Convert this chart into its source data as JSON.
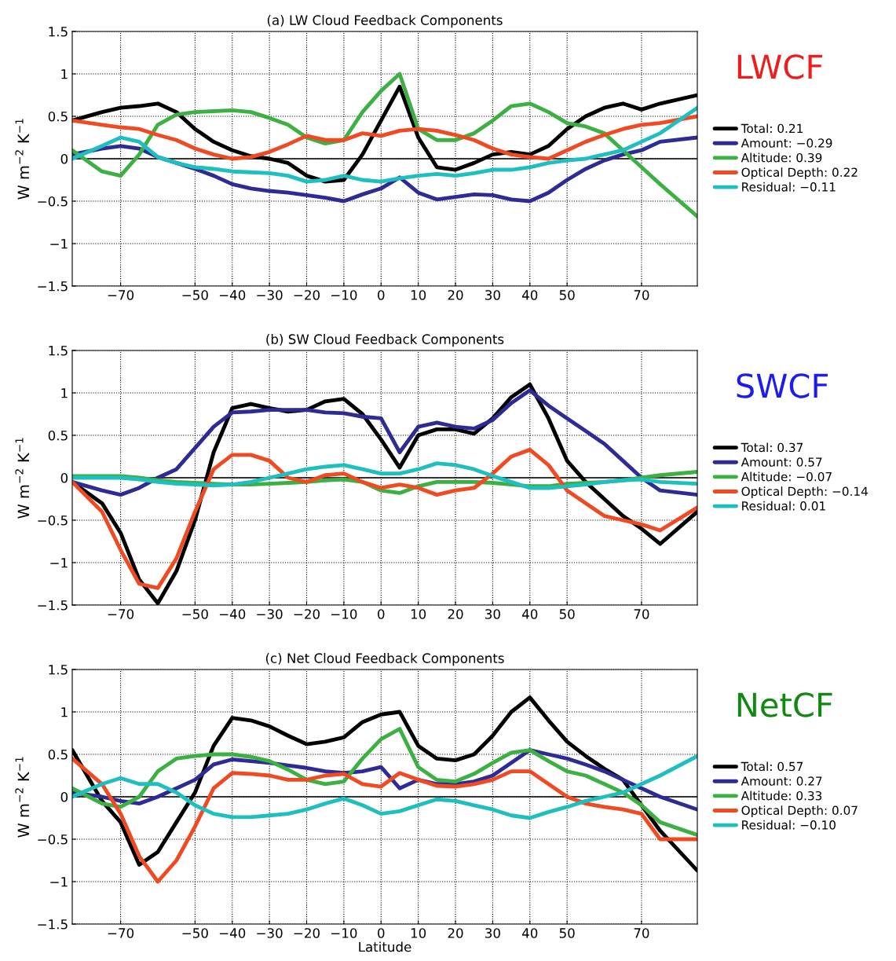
{
  "chart_data": [
    {
      "type": "line",
      "title": "(a) LW Cloud Feedback Components",
      "ylabel": "W m$^{−2}$ K$^{−1}$",
      "annotations": [
        "LWCF"
      ],
      "legend": "right",
      "grid": true,
      "line_style": "solid",
      "xlim": [
        -83,
        85
      ],
      "xticks": [
        {
          "value": -70,
          "label": "−70"
        },
        {
          "value": -50,
          "label": "−50"
        },
        {
          "value": -40,
          "label": "−40"
        },
        {
          "value": -30,
          "label": "−30"
        },
        {
          "value": -20,
          "label": "−20"
        },
        {
          "value": -10,
          "label": "−10"
        },
        0,
        10,
        20,
        30,
        40,
        50,
        70
      ],
      "ylim": [
        -1.5,
        1.5
      ],
      "yticks": [
        {
          "value": -1.5,
          "label": "−1.5"
        },
        {
          "value": -1,
          "label": "−1"
        },
        {
          "value": -0.5,
          "label": "−0.5"
        },
        0,
        0.5,
        1,
        1.5
      ],
      "ref_lines": [
        {
          "axis": "y",
          "value": 0,
          "color": "#000000",
          "line_style": "solid"
        }
      ],
      "x": [
        -83,
        -75,
        -70,
        -65,
        -60,
        -55,
        -50,
        -45,
        -40,
        -35,
        -30,
        -25,
        -20,
        -15,
        -10,
        -5,
        0,
        5,
        10,
        15,
        20,
        25,
        30,
        35,
        40,
        45,
        50,
        55,
        60,
        65,
        70,
        75,
        85
      ],
      "series": [
        {
          "name": "Total: 0.21",
          "color": "#000000",
          "values": [
            0.45,
            0.55,
            0.6,
            0.62,
            0.65,
            0.55,
            0.35,
            0.2,
            0.1,
            0.03,
            0.0,
            -0.05,
            -0.2,
            -0.27,
            -0.25,
            0.05,
            0.45,
            0.85,
            0.25,
            -0.1,
            -0.13,
            -0.05,
            0.05,
            0.08,
            0.05,
            0.15,
            0.35,
            0.5,
            0.6,
            0.65,
            0.58,
            0.65,
            0.75
          ]
        },
        {
          "name": "Amount: −0.29",
          "color": "#2e2a96",
          "values": [
            0.05,
            0.12,
            0.15,
            0.12,
            0.02,
            -0.05,
            -0.12,
            -0.2,
            -0.3,
            -0.35,
            -0.38,
            -0.4,
            -0.43,
            -0.46,
            -0.5,
            -0.42,
            -0.35,
            -0.22,
            -0.4,
            -0.48,
            -0.45,
            -0.42,
            -0.43,
            -0.48,
            -0.5,
            -0.4,
            -0.25,
            -0.12,
            -0.02,
            0.05,
            0.1,
            0.2,
            0.25
          ]
        },
        {
          "name": "Altitude: 0.39",
          "color": "#3cb043",
          "values": [
            0.1,
            -0.15,
            -0.2,
            0.05,
            0.4,
            0.52,
            0.55,
            0.56,
            0.57,
            0.55,
            0.48,
            0.4,
            0.25,
            0.18,
            0.22,
            0.55,
            0.8,
            1.0,
            0.35,
            0.22,
            0.22,
            0.3,
            0.45,
            0.62,
            0.65,
            0.55,
            0.42,
            0.38,
            0.3,
            0.1,
            -0.1,
            -0.3,
            -0.68
          ]
        },
        {
          "name": "Optical Depth: 0.22",
          "color": "#f04a23",
          "values": [
            0.45,
            0.4,
            0.37,
            0.35,
            0.28,
            0.22,
            0.12,
            0.05,
            0.0,
            0.02,
            0.08,
            0.17,
            0.27,
            0.22,
            0.22,
            0.3,
            0.27,
            0.33,
            0.35,
            0.33,
            0.28,
            0.22,
            0.12,
            0.05,
            0.02,
            0.0,
            0.1,
            0.2,
            0.28,
            0.35,
            0.4,
            0.42,
            0.5
          ]
        },
        {
          "name": "Residual: −0.11",
          "color": "#1fbfbf",
          "values": [
            0.0,
            0.15,
            0.25,
            0.2,
            0.02,
            -0.05,
            -0.1,
            -0.12,
            -0.15,
            -0.16,
            -0.17,
            -0.2,
            -0.27,
            -0.25,
            -0.2,
            -0.25,
            -0.27,
            -0.23,
            -0.2,
            -0.18,
            -0.2,
            -0.17,
            -0.13,
            -0.13,
            -0.1,
            -0.05,
            -0.02,
            0.0,
            0.05,
            0.1,
            0.2,
            0.3,
            0.6
          ]
        }
      ]
    },
    {
      "type": "line",
      "title": "(b) SW Cloud Feedback Components",
      "ylabel": "W m$^{−2}$ K$^{−1}$",
      "annotations": [
        "SWCF"
      ],
      "legend": "right",
      "grid": true,
      "line_style": "solid",
      "xlim": [
        -83,
        85
      ],
      "xticks": [
        {
          "value": -70,
          "label": "−70"
        },
        {
          "value": -50,
          "label": "−50"
        },
        {
          "value": -40,
          "label": "−40"
        },
        {
          "value": -30,
          "label": "−30"
        },
        {
          "value": -20,
          "label": "−20"
        },
        {
          "value": -10,
          "label": "−10"
        },
        0,
        10,
        20,
        30,
        40,
        50,
        70
      ],
      "ylim": [
        -1.5,
        1.5
      ],
      "yticks": [
        {
          "value": -1.5,
          "label": "−1.5"
        },
        {
          "value": -1,
          "label": "−1"
        },
        {
          "value": -0.5,
          "label": "−0.5"
        },
        0,
        0.5,
        1,
        1.5
      ],
      "ref_lines": [
        {
          "axis": "y",
          "value": 0,
          "color": "#000000",
          "line_style": "solid"
        }
      ],
      "x": [
        -83,
        -75,
        -70,
        -65,
        -60,
        -55,
        -50,
        -45,
        -40,
        -35,
        -30,
        -25,
        -20,
        -15,
        -10,
        -5,
        0,
        5,
        10,
        15,
        20,
        25,
        30,
        35,
        40,
        45,
        50,
        55,
        60,
        65,
        70,
        75,
        85
      ],
      "series": [
        {
          "name": "Total: 0.37",
          "color": "#000000",
          "values": [
            -0.05,
            -0.3,
            -0.65,
            -1.2,
            -1.48,
            -1.1,
            -0.5,
            0.3,
            0.82,
            0.87,
            0.82,
            0.78,
            0.8,
            0.9,
            0.93,
            0.75,
            0.45,
            0.12,
            0.5,
            0.57,
            0.57,
            0.52,
            0.7,
            0.95,
            1.1,
            0.7,
            0.2,
            -0.05,
            -0.25,
            -0.45,
            -0.6,
            -0.78,
            -0.4
          ]
        },
        {
          "name": "Amount: 0.57",
          "color": "#2e2a96",
          "values": [
            -0.05,
            -0.15,
            -0.2,
            -0.12,
            0.0,
            0.1,
            0.35,
            0.6,
            0.77,
            0.78,
            0.8,
            0.8,
            0.8,
            0.77,
            0.76,
            0.72,
            0.7,
            0.3,
            0.6,
            0.65,
            0.6,
            0.58,
            0.68,
            0.88,
            1.03,
            0.85,
            0.7,
            0.55,
            0.4,
            0.2,
            0.0,
            -0.15,
            -0.2
          ]
        },
        {
          "name": "Altitude: −0.07",
          "color": "#3cb043",
          "values": [
            0.02,
            0.02,
            0.02,
            0.0,
            -0.03,
            -0.05,
            -0.06,
            -0.07,
            -0.08,
            -0.08,
            -0.07,
            -0.06,
            -0.05,
            -0.03,
            -0.02,
            -0.05,
            -0.15,
            -0.18,
            -0.1,
            -0.05,
            -0.05,
            -0.05,
            -0.06,
            -0.08,
            -0.1,
            -0.1,
            -0.07,
            -0.06,
            -0.05,
            -0.03,
            0.0,
            0.03,
            0.07
          ]
        },
        {
          "name": "Optical Depth: −0.14",
          "color": "#f04a23",
          "values": [
            -0.05,
            -0.4,
            -0.85,
            -1.25,
            -1.3,
            -0.95,
            -0.4,
            0.1,
            0.27,
            0.27,
            0.2,
            0.0,
            -0.05,
            0.03,
            0.05,
            -0.05,
            -0.12,
            -0.08,
            -0.12,
            -0.2,
            -0.15,
            -0.12,
            0.05,
            0.25,
            0.33,
            0.15,
            -0.15,
            -0.3,
            -0.45,
            -0.5,
            -0.55,
            -0.62,
            -0.35
          ]
        },
        {
          "name": "Residual: 0.01",
          "color": "#1fbfbf",
          "values": [
            0.0,
            0.0,
            0.0,
            -0.02,
            -0.05,
            -0.07,
            -0.08,
            -0.09,
            -0.08,
            -0.05,
            0.0,
            0.05,
            0.1,
            0.13,
            0.15,
            0.1,
            0.05,
            0.05,
            0.1,
            0.17,
            0.15,
            0.1,
            0.02,
            -0.05,
            -0.12,
            -0.12,
            -0.1,
            -0.08,
            -0.05,
            -0.03,
            -0.02,
            -0.05,
            -0.07
          ]
        }
      ]
    },
    {
      "type": "line",
      "title": "(c) Net Cloud Feedback Components",
      "xlabel": "Latitude",
      "ylabel": "W m$^{−2}$ K$^{−1}$",
      "annotations": [
        "NetCF"
      ],
      "legend": "right",
      "grid": true,
      "line_style": "solid",
      "xlim": [
        -83,
        85
      ],
      "xticks": [
        {
          "value": -70,
          "label": "−70"
        },
        {
          "value": -50,
          "label": "−50"
        },
        {
          "value": -40,
          "label": "−40"
        },
        {
          "value": -30,
          "label": "−30"
        },
        {
          "value": -20,
          "label": "−20"
        },
        {
          "value": -10,
          "label": "−10"
        },
        0,
        10,
        20,
        30,
        40,
        50,
        70
      ],
      "ylim": [
        -1.5,
        1.5
      ],
      "yticks": [
        {
          "value": -1.5,
          "label": "−1.5"
        },
        {
          "value": -1,
          "label": "−1"
        },
        {
          "value": -0.5,
          "label": "−0.5"
        },
        0,
        0.5,
        1,
        1.5
      ],
      "ref_lines": [
        {
          "axis": "y",
          "value": 0,
          "color": "#000000",
          "line_style": "solid"
        }
      ],
      "x": [
        -83,
        -75,
        -70,
        -65,
        -60,
        -55,
        -50,
        -45,
        -40,
        -35,
        -30,
        -25,
        -20,
        -15,
        -10,
        -5,
        0,
        5,
        10,
        15,
        20,
        25,
        30,
        35,
        40,
        45,
        50,
        55,
        60,
        65,
        70,
        75,
        85
      ],
      "series": [
        {
          "name": "Total: 0.57",
          "color": "#000000",
          "values": [
            0.55,
            -0.05,
            -0.3,
            -0.8,
            -0.65,
            -0.3,
            0.05,
            0.6,
            0.93,
            0.9,
            0.83,
            0.72,
            0.62,
            0.65,
            0.7,
            0.88,
            0.97,
            1.0,
            0.6,
            0.45,
            0.43,
            0.5,
            0.72,
            1.0,
            1.17,
            0.9,
            0.65,
            0.48,
            0.33,
            0.2,
            -0.1,
            -0.4,
            -0.87
          ]
        },
        {
          "name": "Amount: 0.27",
          "color": "#2e2a96",
          "values": [
            0.05,
            0.0,
            -0.05,
            -0.08,
            0.0,
            0.1,
            0.2,
            0.38,
            0.44,
            0.42,
            0.4,
            0.37,
            0.34,
            0.3,
            0.28,
            0.3,
            0.35,
            0.1,
            0.2,
            0.15,
            0.15,
            0.18,
            0.25,
            0.4,
            0.55,
            0.5,
            0.45,
            0.38,
            0.3,
            0.2,
            0.1,
            0.0,
            -0.15
          ]
        },
        {
          "name": "Altitude: 0.33",
          "color": "#3cb043",
          "values": [
            0.1,
            -0.08,
            -0.12,
            0.0,
            0.3,
            0.45,
            0.48,
            0.5,
            0.5,
            0.47,
            0.42,
            0.32,
            0.2,
            0.15,
            0.18,
            0.45,
            0.68,
            0.8,
            0.35,
            0.2,
            0.18,
            0.27,
            0.4,
            0.52,
            0.55,
            0.42,
            0.3,
            0.25,
            0.15,
            0.05,
            -0.1,
            -0.3,
            -0.45
          ]
        },
        {
          "name": "Optical Depth: 0.07",
          "color": "#f04a23",
          "values": [
            0.45,
            0.15,
            -0.2,
            -0.7,
            -1.0,
            -0.75,
            -0.35,
            0.1,
            0.28,
            0.27,
            0.25,
            0.2,
            0.2,
            0.25,
            0.27,
            0.15,
            0.12,
            0.28,
            0.2,
            0.13,
            0.12,
            0.15,
            0.2,
            0.3,
            0.3,
            0.15,
            0.0,
            -0.08,
            -0.12,
            -0.15,
            -0.2,
            -0.5,
            -0.5
          ]
        },
        {
          "name": "Residual: −0.10",
          "color": "#1fbfbf",
          "values": [
            0.0,
            0.15,
            0.22,
            0.15,
            0.15,
            0.05,
            -0.1,
            -0.2,
            -0.24,
            -0.24,
            -0.22,
            -0.2,
            -0.15,
            -0.08,
            -0.02,
            -0.1,
            -0.2,
            -0.17,
            -0.1,
            -0.03,
            -0.05,
            -0.1,
            -0.15,
            -0.22,
            -0.25,
            -0.18,
            -0.12,
            -0.05,
            0.0,
            0.05,
            0.15,
            0.25,
            0.48
          ]
        }
      ]
    }
  ]
}
